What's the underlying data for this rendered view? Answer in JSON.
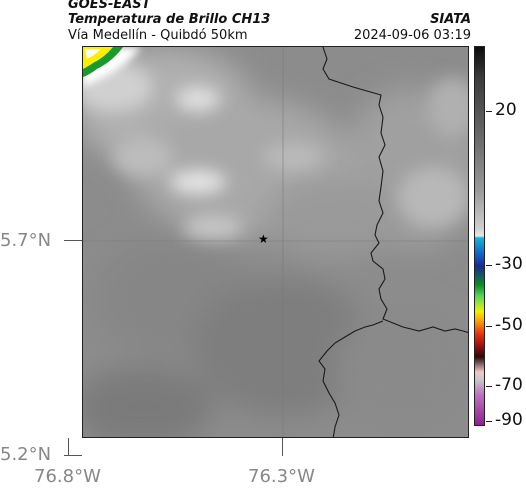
{
  "header": {
    "satellite": "GOES-EAST",
    "product": "Temperatura de Brillo CH13",
    "region": "Vía Medellín - Quibdó 50km",
    "brand": "SIATA",
    "timestamp": "2024-09-06 03:19"
  },
  "axes": {
    "y_ticks": [
      "5.7°N",
      "5.2°N"
    ],
    "x_ticks": [
      "76.8°W",
      "76.3°W"
    ]
  },
  "colorbar": {
    "labels": [
      "20",
      "-30",
      "-50",
      "-70",
      "-90"
    ]
  },
  "colors": {
    "border_line": "#1a1a1a",
    "background_gray": "#8a8a8a",
    "marker": "#000000"
  },
  "map": {
    "marker_icon": "star-icon"
  }
}
